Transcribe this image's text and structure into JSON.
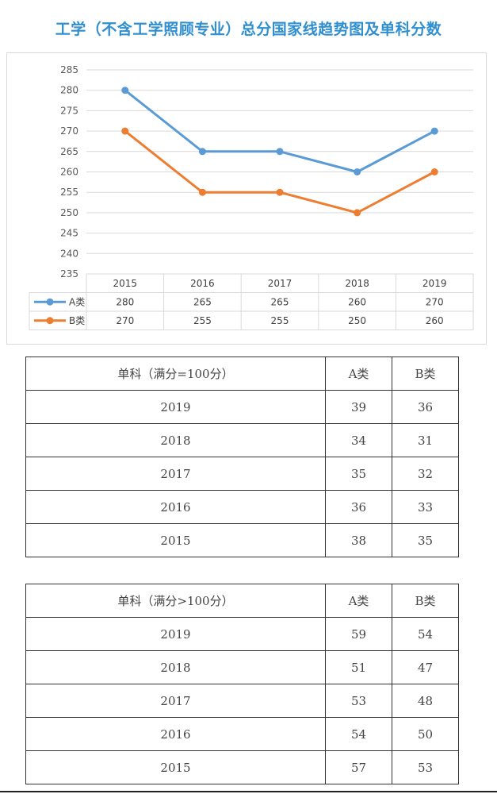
{
  "title": "工学（不含工学照顾专业）总分国家线趋势图及单科分数",
  "chart_data": {
    "type": "line",
    "categories": [
      "2015",
      "2016",
      "2017",
      "2018",
      "2019"
    ],
    "series": [
      {
        "name": "A类",
        "values": [
          280,
          265,
          265,
          260,
          270
        ],
        "color": "#5b9bd5"
      },
      {
        "name": "B类",
        "values": [
          270,
          255,
          255,
          250,
          260
        ],
        "color": "#ed7d31"
      }
    ],
    "ylim": [
      235,
      285
    ],
    "yticks": [
      235,
      240,
      245,
      250,
      255,
      260,
      265,
      270,
      275,
      280,
      285
    ],
    "grid": true,
    "legend": "data-table-below"
  },
  "table1": {
    "headers": [
      "单科（满分=100分）",
      "A类",
      "B类"
    ],
    "rows": [
      [
        "2019",
        "39",
        "36"
      ],
      [
        "2018",
        "34",
        "31"
      ],
      [
        "2017",
        "35",
        "32"
      ],
      [
        "2016",
        "36",
        "33"
      ],
      [
        "2015",
        "38",
        "35"
      ]
    ]
  },
  "table2": {
    "headers": [
      "单科（满分>100分）",
      "A类",
      "B类"
    ],
    "rows": [
      [
        "2019",
        "59",
        "54"
      ],
      [
        "2018",
        "51",
        "47"
      ],
      [
        "2017",
        "53",
        "48"
      ],
      [
        "2016",
        "54",
        "50"
      ],
      [
        "2015",
        "57",
        "53"
      ]
    ]
  }
}
